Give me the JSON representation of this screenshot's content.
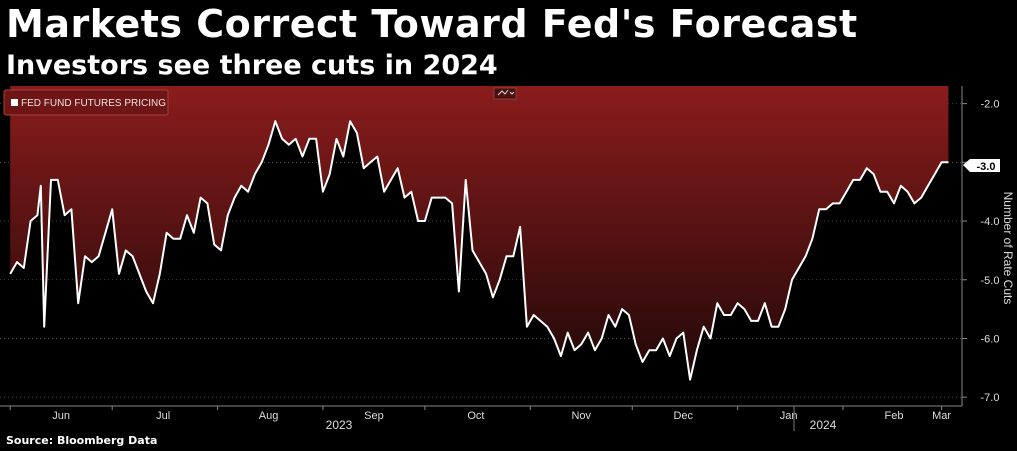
{
  "header": {
    "title": "Markets Correct Toward Fed's Forecast",
    "subtitle": "Investors see three cuts in 2024"
  },
  "footer": {
    "source": "Source: Bloomberg Data"
  },
  "colors": {
    "background": "#000000",
    "area_top": "#8b1c1c",
    "area_bottom": "#200808",
    "line": "#ffffff"
  },
  "chart_data": {
    "type": "area",
    "legend": [
      "FED FUND FUTURES PRICING"
    ],
    "legend_position": "top-left",
    "ylabel": "Number of Rate Cuts",
    "y_axis_side": "right",
    "y_inverted": true,
    "ylim": [
      -1.7,
      -7.15
    ],
    "y_ticks": [
      "-2.0",
      "-3.0",
      "-4.0",
      "-5.0",
      "-6.0",
      "-7.0"
    ],
    "x_tick_labels": [
      "Jun",
      "Jul",
      "Aug",
      "Sep",
      "Oct",
      "Nov",
      "Dec",
      "Jan",
      "Feb",
      "Mar"
    ],
    "year_labels": [
      "2023",
      "2024"
    ],
    "last_value_label": "-3.0",
    "grid": "dashed horizontal",
    "x": [
      "2023-06-01",
      "2023-06-03",
      "2023-06-05",
      "2023-06-07",
      "2023-06-09",
      "2023-06-10",
      "2023-06-11",
      "2023-06-13",
      "2023-06-15",
      "2023-06-17",
      "2023-06-19",
      "2023-06-21",
      "2023-06-23",
      "2023-06-25",
      "2023-06-27",
      "2023-06-29",
      "2023-07-01",
      "2023-07-03",
      "2023-07-05",
      "2023-07-07",
      "2023-07-09",
      "2023-07-11",
      "2023-07-13",
      "2023-07-15",
      "2023-07-17",
      "2023-07-19",
      "2023-07-21",
      "2023-07-23",
      "2023-07-25",
      "2023-07-27",
      "2023-07-29",
      "2023-07-31",
      "2023-08-02",
      "2023-08-04",
      "2023-08-06",
      "2023-08-08",
      "2023-08-10",
      "2023-08-12",
      "2023-08-14",
      "2023-08-16",
      "2023-08-18",
      "2023-08-20",
      "2023-08-22",
      "2023-08-24",
      "2023-08-26",
      "2023-08-28",
      "2023-08-30",
      "2023-09-01",
      "2023-09-03",
      "2023-09-05",
      "2023-09-07",
      "2023-09-09",
      "2023-09-11",
      "2023-09-13",
      "2023-09-15",
      "2023-09-17",
      "2023-09-19",
      "2023-09-21",
      "2023-09-23",
      "2023-09-25",
      "2023-09-27",
      "2023-09-29",
      "2023-10-01",
      "2023-10-03",
      "2023-10-05",
      "2023-10-07",
      "2023-10-09",
      "2023-10-11",
      "2023-10-13",
      "2023-10-15",
      "2023-10-17",
      "2023-10-19",
      "2023-10-21",
      "2023-10-23",
      "2023-10-25",
      "2023-10-27",
      "2023-10-29",
      "2023-10-31",
      "2023-11-02",
      "2023-11-04",
      "2023-11-06",
      "2023-11-08",
      "2023-11-10",
      "2023-11-12",
      "2023-11-14",
      "2023-11-16",
      "2023-11-18",
      "2023-11-20",
      "2023-11-22",
      "2023-11-24",
      "2023-11-26",
      "2023-11-28",
      "2023-11-30",
      "2023-12-02",
      "2023-12-04",
      "2023-12-06",
      "2023-12-08",
      "2023-12-10",
      "2023-12-12",
      "2023-12-14",
      "2023-12-16",
      "2023-12-18",
      "2023-12-20",
      "2023-12-22",
      "2023-12-24",
      "2023-12-26",
      "2023-12-28",
      "2023-12-30",
      "2024-01-01",
      "2024-01-03",
      "2024-01-05",
      "2024-01-07",
      "2024-01-09",
      "2024-01-11",
      "2024-01-13",
      "2024-01-15",
      "2024-01-17",
      "2024-01-19",
      "2024-01-21",
      "2024-01-23",
      "2024-01-25",
      "2024-01-27",
      "2024-01-29",
      "2024-01-31",
      "2024-02-02",
      "2024-02-04",
      "2024-02-06",
      "2024-02-08",
      "2024-02-10",
      "2024-02-12",
      "2024-02-14",
      "2024-02-16",
      "2024-02-18",
      "2024-02-20",
      "2024-02-22",
      "2024-02-24",
      "2024-02-26",
      "2024-02-28",
      "2024-03-01",
      "2024-03-03"
    ],
    "values": [
      -4.9,
      -4.7,
      -4.8,
      -4.0,
      -3.9,
      -3.4,
      -5.8,
      -3.3,
      -3.3,
      -3.9,
      -3.8,
      -5.4,
      -4.6,
      -4.7,
      -4.6,
      -4.2,
      -3.8,
      -4.9,
      -4.5,
      -4.6,
      -4.9,
      -5.2,
      -5.4,
      -4.9,
      -4.2,
      -4.3,
      -4.3,
      -3.9,
      -4.2,
      -3.6,
      -3.7,
      -4.4,
      -4.5,
      -3.9,
      -3.6,
      -3.4,
      -3.5,
      -3.2,
      -3.0,
      -2.7,
      -2.3,
      -2.6,
      -2.7,
      -2.6,
      -2.9,
      -2.6,
      -2.6,
      -3.5,
      -3.2,
      -2.6,
      -2.9,
      -2.3,
      -2.5,
      -3.1,
      -3.0,
      -2.9,
      -3.5,
      -3.3,
      -3.1,
      -3.6,
      -3.5,
      -4.0,
      -4.0,
      -3.6,
      -3.6,
      -3.6,
      -3.7,
      -5.2,
      -3.3,
      -4.5,
      -4.7,
      -4.9,
      -5.3,
      -5.0,
      -4.6,
      -4.6,
      -4.1,
      -5.8,
      -5.6,
      -5.7,
      -5.8,
      -6.0,
      -6.3,
      -5.9,
      -6.2,
      -6.1,
      -5.9,
      -6.2,
      -6.0,
      -5.6,
      -5.8,
      -5.5,
      -5.6,
      -6.1,
      -6.4,
      -6.2,
      -6.2,
      -6.0,
      -6.3,
      -6.0,
      -5.9,
      -6.7,
      -6.2,
      -5.8,
      -6.0,
      -5.4,
      -5.6,
      -5.6,
      -5.4,
      -5.5,
      -5.7,
      -5.7,
      -5.4,
      -5.8,
      -5.8,
      -5.5,
      -5.0,
      -4.8,
      -4.6,
      -4.3,
      -3.8,
      -3.8,
      -3.7,
      -3.7,
      -3.5,
      -3.3,
      -3.3,
      -3.1,
      -3.2,
      -3.5,
      -3.5,
      -3.7,
      -3.4,
      -3.5,
      -3.7,
      -3.6,
      -3.4,
      -3.2,
      -3.0,
      -3.0
    ]
  }
}
